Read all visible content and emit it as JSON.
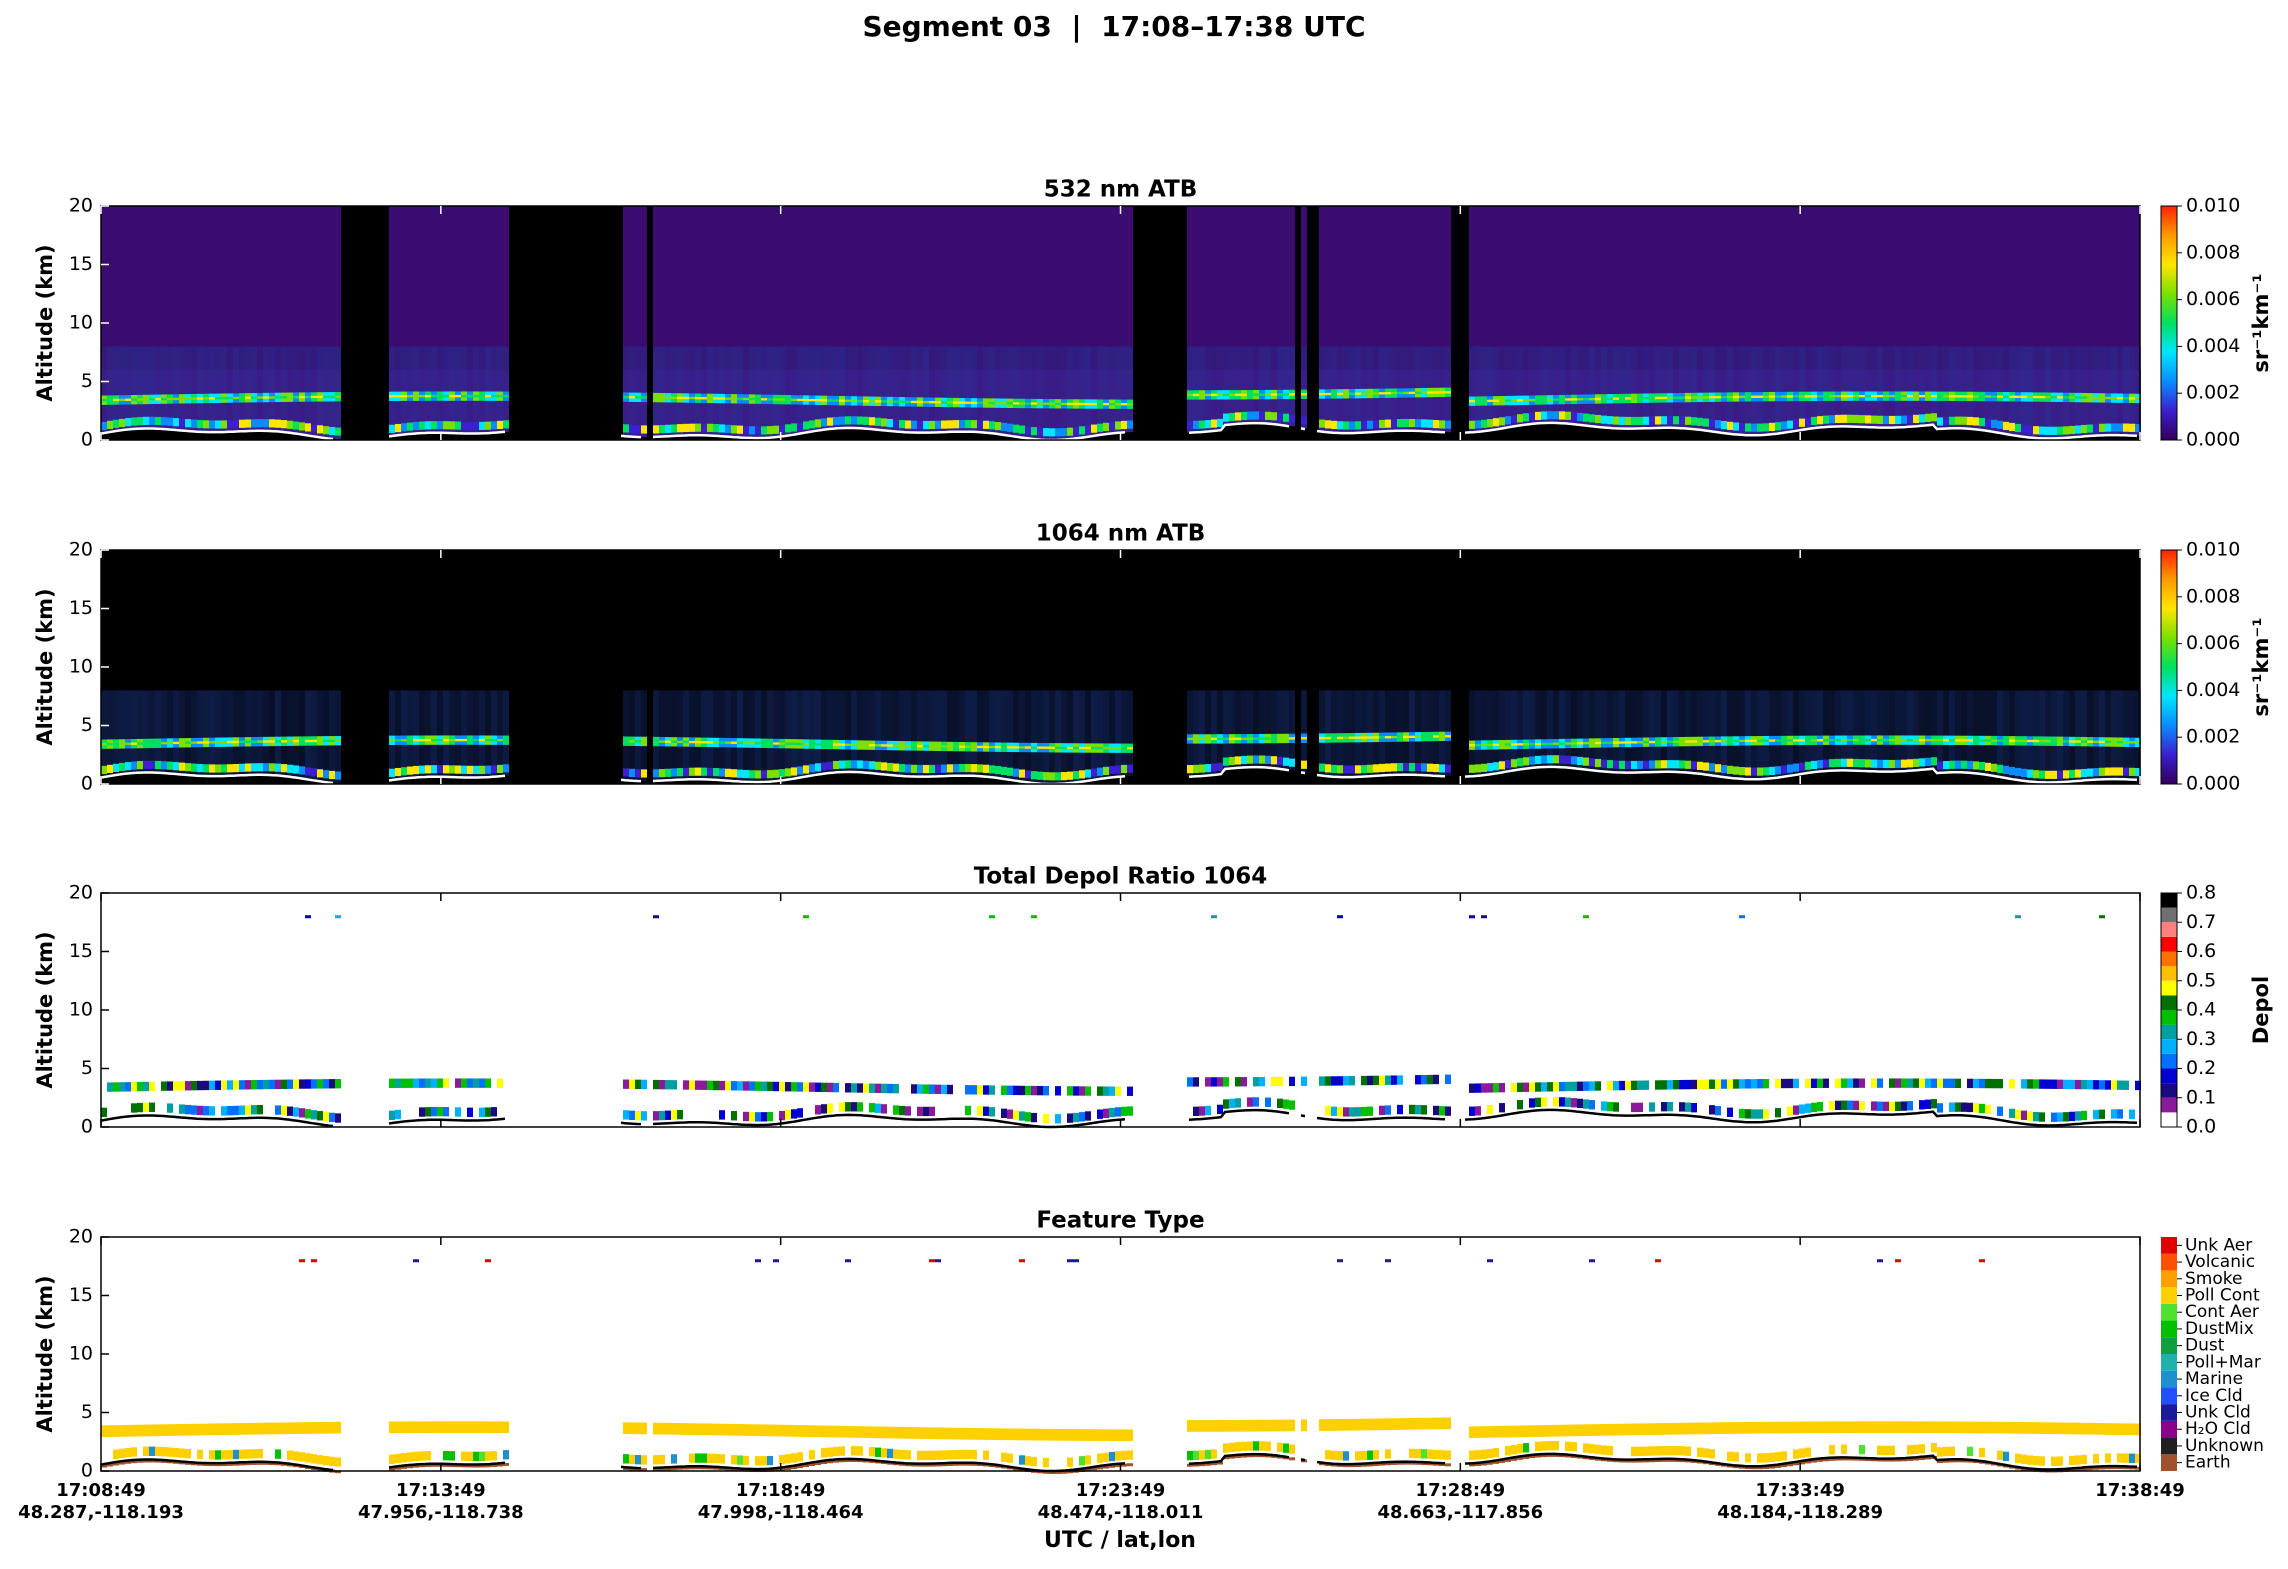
{
  "title": "Segment 03  |  17:08–17:38 UTC",
  "x_axis": {
    "label": "UTC / lat,lon",
    "ticks": [
      {
        "time": "17:08:49",
        "latlon": "48.287,-118.193"
      },
      {
        "time": "17:13:49",
        "latlon": "47.956,-118.738"
      },
      {
        "time": "17:18:49",
        "latlon": "47.998,-118.464"
      },
      {
        "time": "17:23:49",
        "latlon": "48.474,-118.011"
      },
      {
        "time": "17:28:49",
        "latlon": "48.663,-117.856"
      },
      {
        "time": "17:33:49",
        "latlon": "48.184,-118.289"
      },
      {
        "time": "17:38:49"
      }
    ]
  },
  "chart_data": [
    {
      "type": "heatmap",
      "colormap": "atb",
      "title": "532 nm ATB",
      "ylabel": "Altitude (km)",
      "ylim": [
        0,
        20
      ],
      "yticks": [
        0,
        5,
        10,
        15,
        20
      ],
      "background": "#3b0c70",
      "ground_color": "#ffffff",
      "colorbar": {
        "label": "sr⁻¹km⁻¹",
        "lim": [
          0,
          0.01
        ],
        "ticks": [
          {
            "value": 0,
            "label": "0.000"
          },
          {
            "value": 0.002,
            "label": "0.002"
          },
          {
            "value": 0.004,
            "label": "0.004"
          },
          {
            "value": 0.006,
            "label": "0.006"
          },
          {
            "value": 0.008,
            "label": "0.008"
          },
          {
            "value": 0.01,
            "label": "0.010"
          }
        ],
        "colors": [
          "#30005a",
          "#3b1fd0",
          "#0a8cff",
          "#00e5ff",
          "#00e060",
          "#7ae000",
          "#ffe600",
          "#ff9a00",
          "#ff2000"
        ]
      }
    },
    {
      "type": "heatmap",
      "colormap": "atb",
      "title": "1064 nm ATB",
      "ylabel": "Altitude (km)",
      "ylim": [
        0,
        20
      ],
      "yticks": [
        0,
        5,
        10,
        15,
        20
      ],
      "background": "#000000",
      "ground_color": "#ffffff",
      "colorbar": {
        "label": "sr⁻¹km⁻¹",
        "lim": [
          0,
          0.01
        ],
        "ticks": [
          {
            "value": 0,
            "label": "0.000"
          },
          {
            "value": 0.002,
            "label": "0.002"
          },
          {
            "value": 0.004,
            "label": "0.004"
          },
          {
            "value": 0.006,
            "label": "0.006"
          },
          {
            "value": 0.008,
            "label": "0.008"
          },
          {
            "value": 0.01,
            "label": "0.010"
          }
        ],
        "colors": [
          "#30005a",
          "#3b1fd0",
          "#0a8cff",
          "#00e5ff",
          "#00e060",
          "#7ae000",
          "#ffe600",
          "#ff9a00",
          "#ff2000"
        ]
      }
    },
    {
      "type": "heatmap",
      "colormap": "depol",
      "title": "Total Depol Ratio 1064",
      "ylabel": "Altitude (km)",
      "ylim": [
        0,
        20
      ],
      "yticks": [
        0,
        5,
        10,
        15,
        20
      ],
      "background": "#ffffff",
      "ground_color": "#000000",
      "colorbar": {
        "label": "Depol",
        "lim": [
          0,
          0.8
        ],
        "ticks": [
          {
            "value": 0,
            "label": "0.0"
          },
          {
            "value": 0.1,
            "label": "0.1"
          },
          {
            "value": 0.2,
            "label": "0.2"
          },
          {
            "value": 0.3,
            "label": "0.3"
          },
          {
            "value": 0.4,
            "label": "0.4"
          },
          {
            "value": 0.5,
            "label": "0.5"
          },
          {
            "value": 0.6,
            "label": "0.6"
          },
          {
            "value": 0.7,
            "label": "0.7"
          },
          {
            "value": 0.8,
            "label": "0.8"
          }
        ],
        "colors": [
          "#ffffff",
          "#8a1a9a",
          "#1a0a80",
          "#0000d0",
          "#0070ff",
          "#00b0ff",
          "#00a0a0",
          "#00c000",
          "#007000",
          "#ffff00",
          "#ffc000",
          "#ff7000",
          "#ff0000",
          "#ff8080",
          "#707070",
          "#000000"
        ]
      }
    },
    {
      "type": "heatmap",
      "colormap": "classes",
      "title": "Feature Type",
      "ylabel": "Altitude (km)",
      "ylim": [
        0,
        20
      ],
      "yticks": [
        0,
        5,
        10,
        15,
        20
      ],
      "background": "#ffffff",
      "ground_color": "#000000",
      "colorbar": {
        "classes": [
          {
            "name": "Earth",
            "color": "#a0522d"
          },
          {
            "name": "Unknown",
            "color": "#202020"
          },
          {
            "name": "H₂O Cld",
            "color": "#8b008b"
          },
          {
            "name": "Unk Cld",
            "color": "#1a1a9a"
          },
          {
            "name": "Ice Cld",
            "color": "#2050ff"
          },
          {
            "name": "Marine",
            "color": "#1e90d0"
          },
          {
            "name": "Poll+Mar",
            "color": "#20b0b0"
          },
          {
            "name": "Dust",
            "color": "#10a040"
          },
          {
            "name": "DustMix",
            "color": "#00c000"
          },
          {
            "name": "Cont Aer",
            "color": "#50e030"
          },
          {
            "name": "Poll Cont",
            "color": "#ffd000"
          },
          {
            "name": "Smoke",
            "color": "#ffa000"
          },
          {
            "name": "Volcanic",
            "color": "#ff5000"
          },
          {
            "name": "Unk Aer",
            "color": "#e00000"
          }
        ]
      }
    }
  ]
}
